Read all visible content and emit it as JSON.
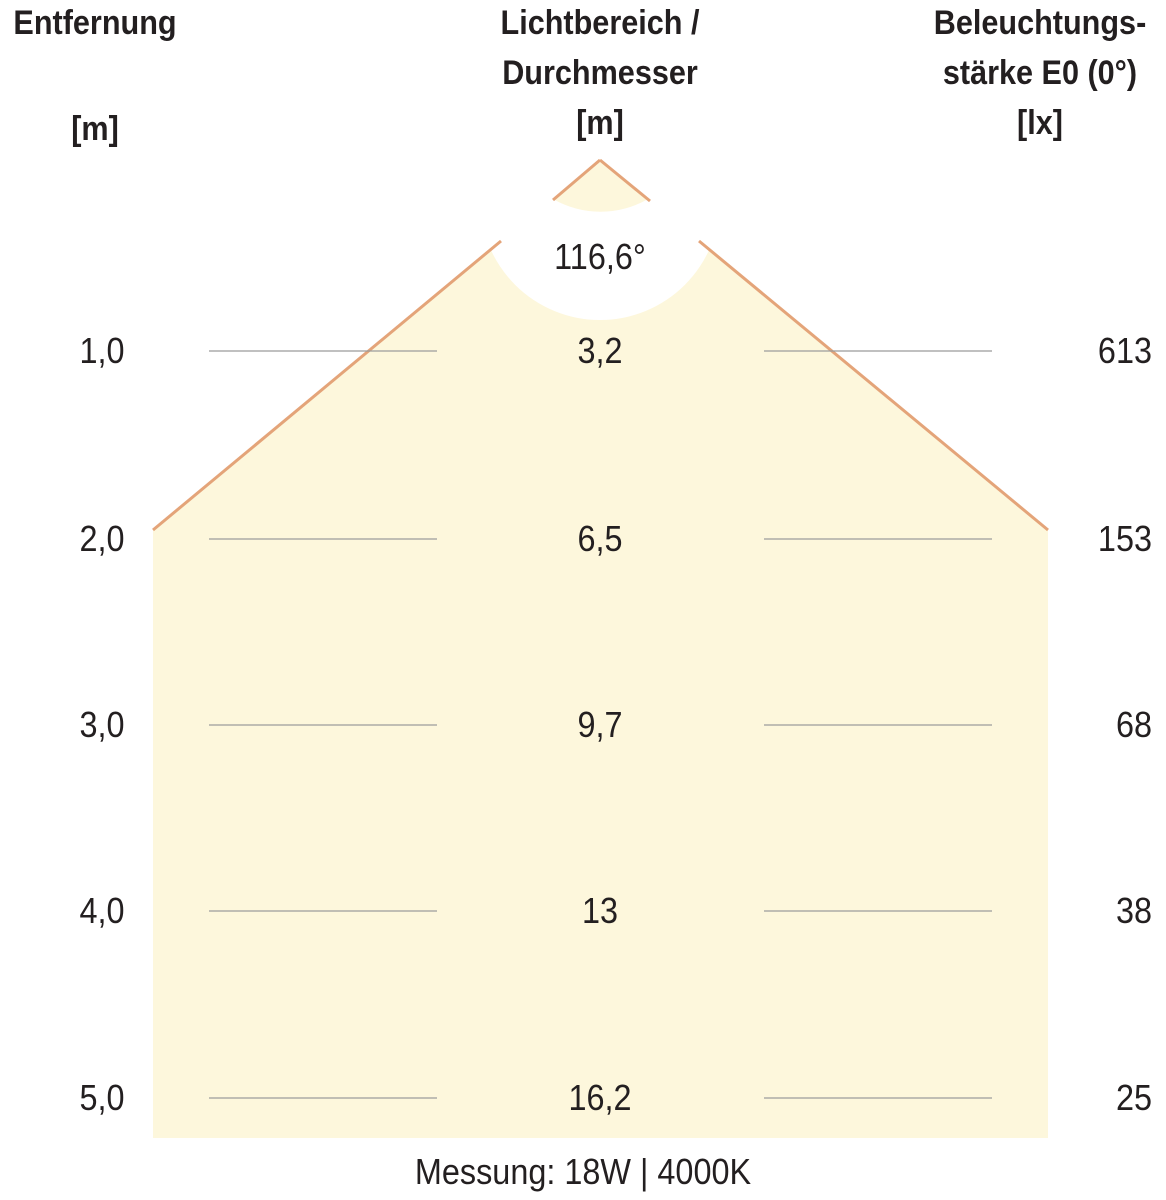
{
  "headers": {
    "distance": [
      "Entfernung",
      "[m]"
    ],
    "diameter": [
      "Lichtbereich /",
      "Durchmesser",
      "[m]"
    ],
    "illuminance": [
      "Beleuchtungs-",
      "stärke E0 (0°)",
      "[lx]"
    ]
  },
  "beam_angle": "116,6°",
  "rows": [
    {
      "distance": "1,0",
      "diameter": "3,2",
      "lux": "613"
    },
    {
      "distance": "2,0",
      "diameter": "6,5",
      "lux": "153"
    },
    {
      "distance": "3,0",
      "diameter": "9,7",
      "lux": "68"
    },
    {
      "distance": "4,0",
      "diameter": "13",
      "lux": "38"
    },
    {
      "distance": "5,0",
      "diameter": "16,2",
      "lux": "25"
    }
  ],
  "footer": "Messung: 18W | 4000K",
  "colors": {
    "beam_fill": "#fdf7dc",
    "beam_edge": "#e4a479",
    "guide_line": "#9b9b9b",
    "text": "#231f20"
  }
}
